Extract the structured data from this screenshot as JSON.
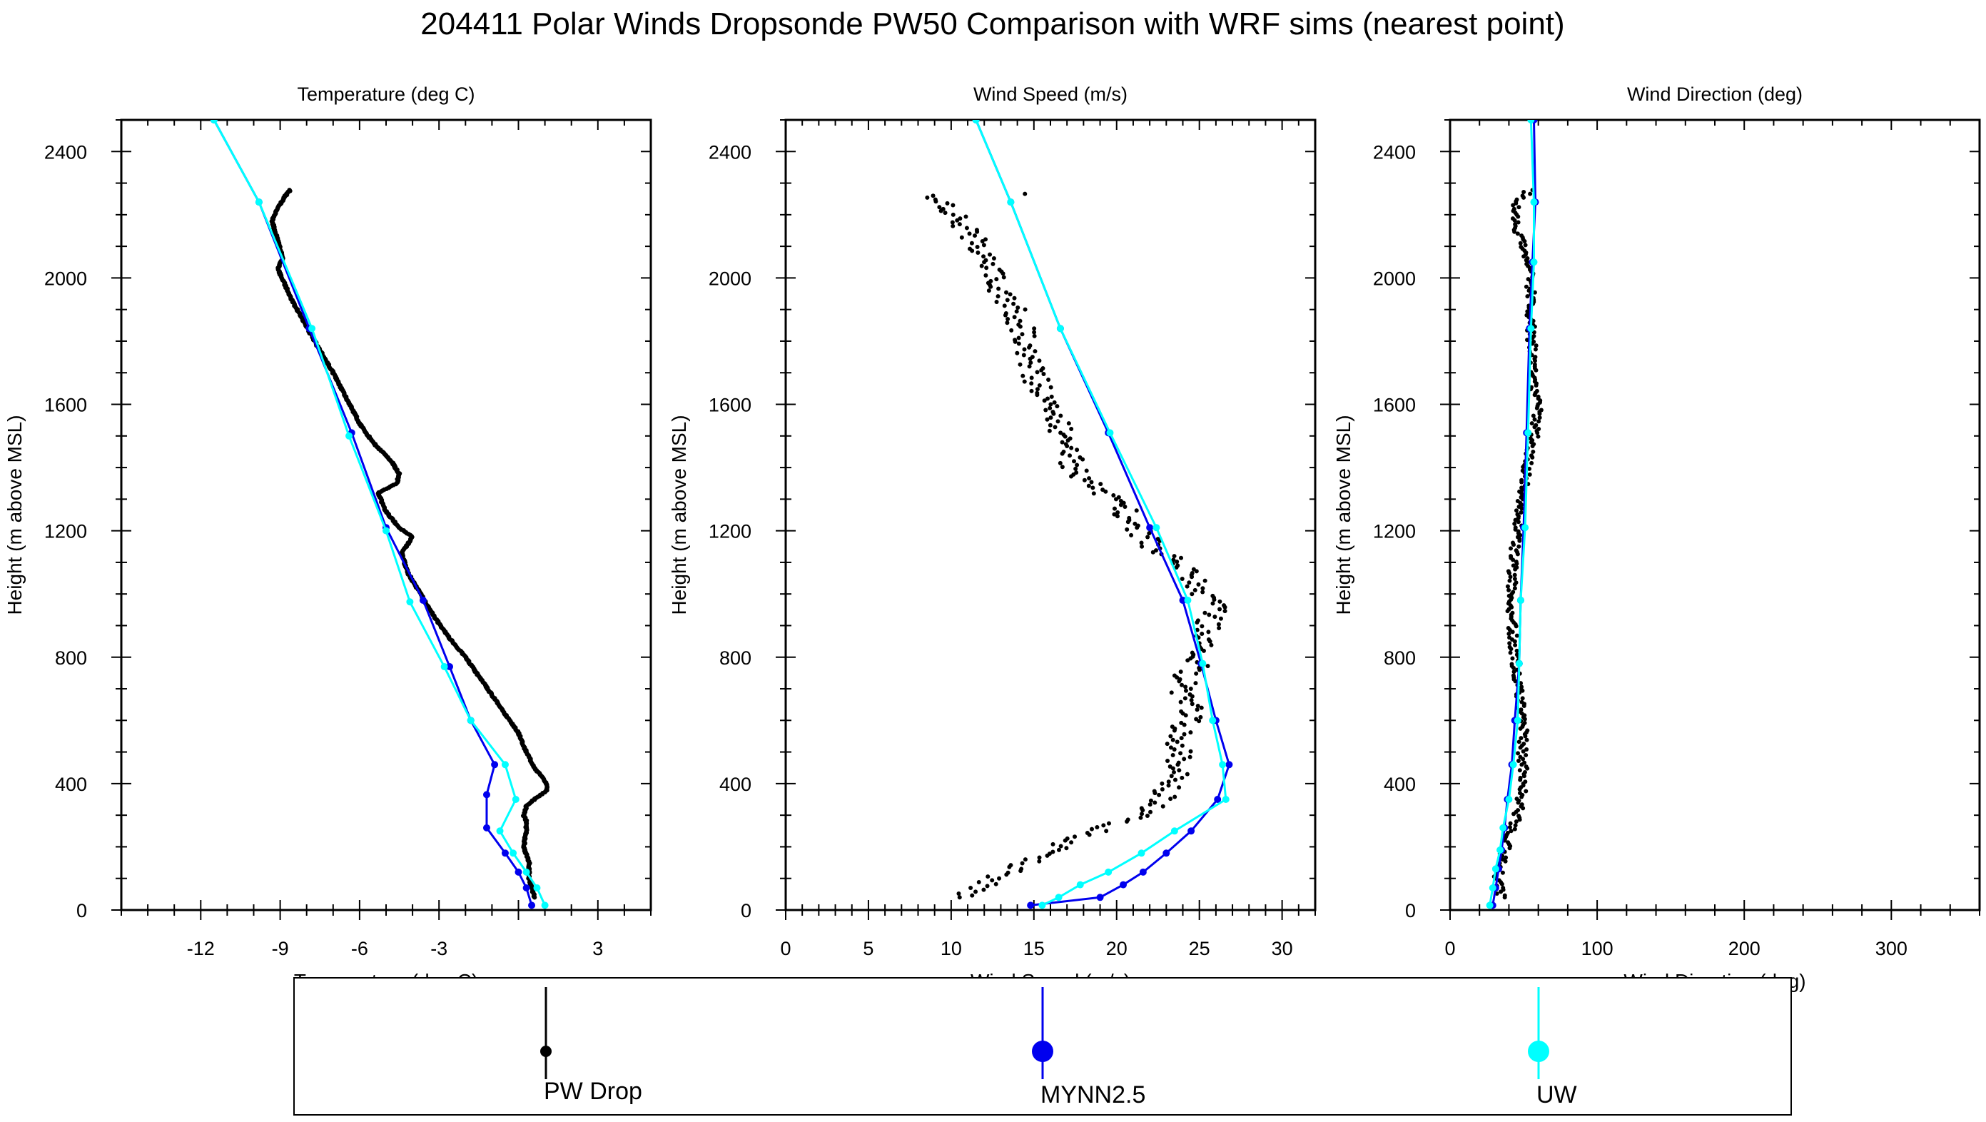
{
  "title": "204411 Polar Winds Dropsonde PW50 Comparison with WRF sims (nearest point)",
  "colors": {
    "obs": "#000000",
    "mynn": "#0000ee",
    "uw": "#00ffff",
    "axis": "#000000"
  },
  "legend": [
    {
      "name": "PW Drop",
      "color": "#000000",
      "marker": "small-dot"
    },
    {
      "name": "MYNN2.5",
      "color": "#0000ee",
      "marker": "large-dot"
    },
    {
      "name": "UW",
      "color": "#00ffff",
      "marker": "large-dot"
    }
  ],
  "chart_data": [
    {
      "type": "line",
      "title": "Temperature (deg C)",
      "xlabel": "Temperature (deg C)",
      "ylabel": "Height (m above MSL)",
      "xlim": [
        -15,
        5
      ],
      "ylim": [
        0,
        2500
      ],
      "xticks": [
        -12,
        -9,
        -6,
        -3,
        3
      ],
      "xtick_labels": [
        "-12",
        "-9",
        "-6",
        "-3",
        "3"
      ],
      "yticks": [
        0,
        400,
        800,
        1200,
        1600,
        2000,
        2400
      ],
      "grid": false,
      "series": [
        {
          "name": "PW Drop",
          "style": "dots",
          "density": "dense",
          "x": [
            0.6,
            0.4,
            0.4,
            0.2,
            0.3,
            0.3,
            0.2,
            0.3,
            0.6,
            1.1,
            1.0,
            0.6,
            0.3,
            0.0,
            -0.5,
            -1.0,
            -1.5,
            -2.0,
            -2.6,
            -3.2,
            -3.7,
            -4.2,
            -4.4,
            -4.0,
            -4.5,
            -5.0,
            -5.3,
            -4.6,
            -4.5,
            -4.8,
            -5.5,
            -6.0,
            -6.5,
            -7.0,
            -7.7,
            -8.5,
            -9.1,
            -8.9,
            -9.1,
            -9.3,
            -9.1,
            -8.8,
            -8.6
          ],
          "y": [
            40,
            100,
            150,
            200,
            250,
            280,
            300,
            330,
            350,
            380,
            410,
            450,
            500,
            560,
            620,
            680,
            740,
            800,
            860,
            930,
            1000,
            1070,
            1130,
            1180,
            1210,
            1260,
            1320,
            1350,
            1380,
            1420,
            1480,
            1540,
            1620,
            1700,
            1800,
            1920,
            2030,
            2060,
            2120,
            2180,
            2220,
            2260,
            2280
          ]
        },
        {
          "name": "MYNN2.5",
          "style": "line-markers",
          "x": [
            0.5,
            0.3,
            0.0,
            -0.5,
            -1.2,
            -1.2,
            -0.9,
            -1.8,
            -2.6,
            -3.6,
            -5.0,
            -6.3,
            -7.9,
            -9.8,
            -11.5
          ],
          "y": [
            15,
            70,
            120,
            180,
            260,
            365,
            460,
            600,
            770,
            980,
            1210,
            1510,
            1840,
            2240,
            2500
          ]
        },
        {
          "name": "UW",
          "style": "line-markers",
          "x": [
            1.0,
            0.7,
            0.3,
            -0.2,
            -0.7,
            -0.1,
            -0.5,
            -1.8,
            -2.8,
            -4.1,
            -5.0,
            -6.4,
            -7.8,
            -9.8,
            -11.5
          ],
          "y": [
            15,
            70,
            120,
            180,
            250,
            350,
            460,
            600,
            770,
            975,
            1200,
            1500,
            1840,
            2240,
            2500
          ]
        }
      ]
    },
    {
      "type": "line",
      "title": "Wind Speed (m/s)",
      "xlabel": "Wind Speed (m/s)",
      "ylabel": "Height (m above MSL)",
      "xlim": [
        0,
        32
      ],
      "ylim": [
        0,
        2500
      ],
      "xticks": [
        0,
        5,
        10,
        15,
        20,
        25,
        30
      ],
      "xtick_labels": [
        "0",
        "5",
        "10",
        "15",
        "20",
        "25",
        "30"
      ],
      "yticks": [
        0,
        400,
        800,
        1200,
        1600,
        2000,
        2400
      ],
      "grid": false,
      "series": [
        {
          "name": "PW Drop",
          "style": "dots",
          "density": "scattered",
          "jitter": 0.8,
          "x": [
            10.8,
            12.0,
            13.5,
            15.0,
            16.5,
            18.0,
            19.5,
            21.0,
            22.5,
            23.0,
            23.3,
            23.8,
            23.8,
            23.5,
            24.0,
            24.5,
            24.3,
            24.0,
            24.2,
            25.0,
            25.5,
            25.8,
            25.0,
            24.0,
            23.0,
            22.0,
            21.0,
            20.0,
            18.5,
            17.5,
            17.0,
            16.6,
            16.0,
            15.5,
            15.0,
            14.5,
            14.5,
            14.0,
            13.2,
            12.5,
            12.0,
            11.5,
            10.5,
            9.5,
            9.0,
            13.0,
            15.5
          ],
          "y": [
            40,
            80,
            120,
            160,
            200,
            230,
            260,
            290,
            330,
            370,
            410,
            450,
            490,
            530,
            570,
            620,
            660,
            700,
            740,
            780,
            870,
            960,
            1020,
            1080,
            1120,
            1160,
            1220,
            1300,
            1340,
            1400,
            1460,
            1520,
            1580,
            1640,
            1700,
            1760,
            1820,
            1880,
            1940,
            2000,
            2060,
            2120,
            2180,
            2220,
            2260,
            2250,
            2270
          ]
        },
        {
          "name": "MYNN2.5",
          "style": "line-markers",
          "x": [
            14.8,
            19.0,
            20.4,
            21.6,
            23.0,
            24.5,
            26.1,
            26.8,
            26.0,
            25.1,
            24.0,
            22.0,
            19.5,
            16.6,
            13.6,
            11.5
          ],
          "y": [
            15,
            40,
            80,
            120,
            180,
            250,
            350,
            460,
            600,
            780,
            980,
            1210,
            1510,
            1840,
            2240,
            2500
          ]
        },
        {
          "name": "UW",
          "style": "line-markers",
          "x": [
            15.5,
            16.5,
            17.8,
            19.5,
            21.5,
            23.5,
            26.6,
            26.4,
            25.8,
            25.2,
            24.3,
            22.4,
            19.6,
            16.6,
            13.6,
            11.5
          ],
          "y": [
            15,
            40,
            80,
            120,
            180,
            250,
            350,
            460,
            600,
            780,
            980,
            1210,
            1510,
            1840,
            2240,
            2500
          ]
        }
      ]
    },
    {
      "type": "line",
      "title": "Wind Direction (deg)",
      "xlabel": "Wind Direction (deg)",
      "ylabel": "Height (m above MSL)",
      "xlim": [
        0,
        360
      ],
      "ylim": [
        0,
        2500
      ],
      "xticks": [
        0,
        100,
        200,
        300
      ],
      "xtick_labels": [
        "0",
        "100",
        "200",
        "300"
      ],
      "yticks": [
        0,
        400,
        800,
        1200,
        1600,
        2000,
        2400
      ],
      "grid": false,
      "series": [
        {
          "name": "PW Drop",
          "style": "dots",
          "density": "scattered",
          "jitter": 3,
          "x": [
            35,
            32,
            35,
            38,
            42,
            46,
            48,
            50,
            50,
            49,
            50,
            49,
            47,
            46,
            44,
            43,
            42,
            42,
            42,
            43,
            44,
            46,
            48,
            50,
            52,
            55,
            58,
            60,
            58,
            56,
            56,
            55,
            55,
            55,
            54,
            52,
            48,
            45,
            44,
            50,
            55
          ],
          "y": [
            40,
            100,
            150,
            200,
            250,
            300,
            350,
            400,
            450,
            500,
            560,
            620,
            680,
            740,
            800,
            860,
            920,
            980,
            1040,
            1100,
            1160,
            1220,
            1280,
            1340,
            1400,
            1460,
            1520,
            1580,
            1640,
            1700,
            1760,
            1820,
            1880,
            1940,
            2000,
            2060,
            2120,
            2180,
            2240,
            2260,
            2280
          ]
        },
        {
          "name": "MYNN2.5",
          "style": "line-markers",
          "x": [
            29,
            31,
            33,
            35,
            37,
            39,
            42,
            44,
            47,
            48,
            50,
            52,
            54,
            56,
            58,
            57
          ],
          "y": [
            15,
            70,
            130,
            190,
            260,
            350,
            460,
            600,
            780,
            980,
            1210,
            1510,
            1840,
            2050,
            2240,
            2500
          ]
        },
        {
          "name": "UW",
          "style": "line-markers",
          "x": [
            27,
            29,
            31,
            34,
            36,
            40,
            43,
            46,
            47,
            48,
            51,
            53,
            55,
            57,
            57,
            55
          ],
          "y": [
            15,
            70,
            130,
            190,
            260,
            350,
            460,
            600,
            780,
            980,
            1210,
            1510,
            1840,
            2050,
            2240,
            2500
          ]
        }
      ]
    }
  ]
}
